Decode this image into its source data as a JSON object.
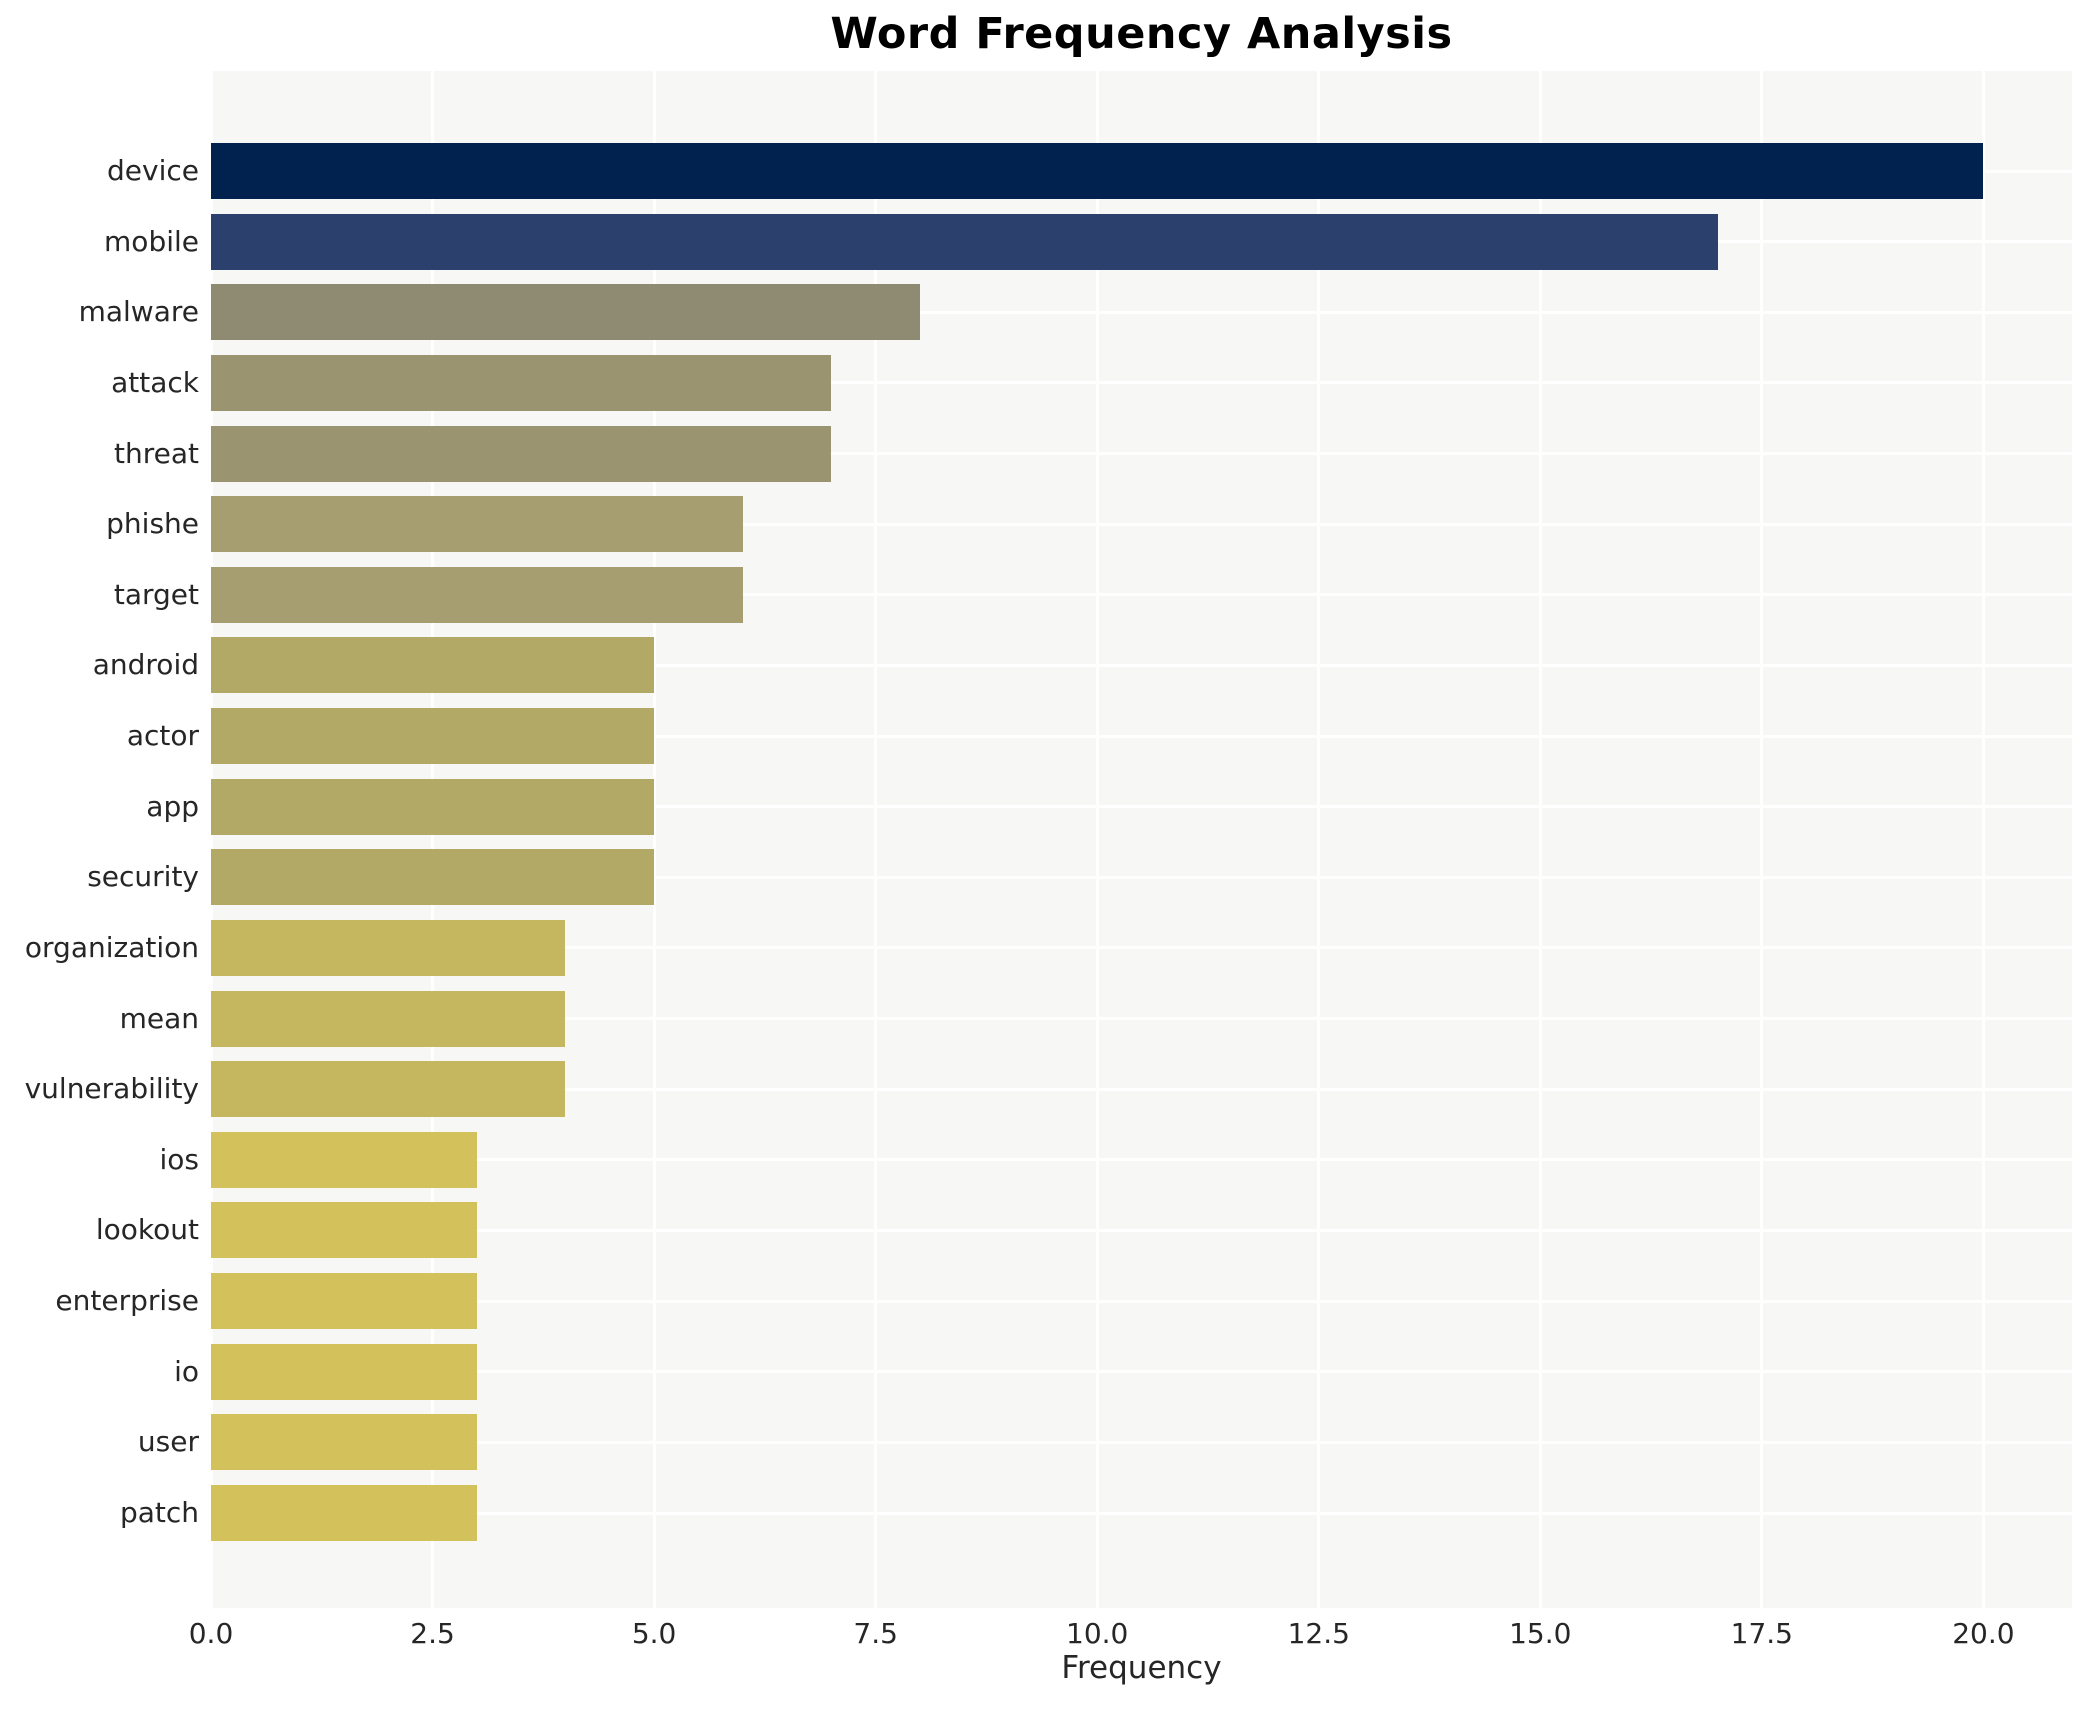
{
  "chart_data": {
    "type": "bar",
    "orientation": "horizontal",
    "title": "Word Frequency Analysis",
    "xlabel": "Frequency",
    "ylabel": "",
    "categories": [
      "device",
      "mobile",
      "malware",
      "attack",
      "threat",
      "phishe",
      "target",
      "android",
      "actor",
      "app",
      "security",
      "organization",
      "mean",
      "vulnerability",
      "ios",
      "lookout",
      "enterprise",
      "io",
      "user",
      "patch"
    ],
    "values": [
      20,
      17,
      8,
      7,
      7,
      6,
      6,
      5,
      5,
      5,
      5,
      4,
      4,
      4,
      3,
      3,
      3,
      3,
      3,
      3
    ],
    "bar_colors": [
      "#01224e",
      "#2b406c",
      "#8f8a72",
      "#9b9471",
      "#9b9471",
      "#a69d70",
      "#a69d70",
      "#b3a967",
      "#b3a967",
      "#b3a967",
      "#b3a967",
      "#c5b75f",
      "#c5b75f",
      "#c5b75f",
      "#d3c15c",
      "#d3c15c",
      "#d3c15c",
      "#d3c15c",
      "#d3c15c",
      "#d3c15c"
    ],
    "xlim": [
      0,
      21
    ],
    "xticks": [
      0.0,
      2.5,
      5.0,
      7.5,
      10.0,
      12.5,
      15.0,
      17.5,
      20.0
    ],
    "xtick_labels": [
      "0.0",
      "2.5",
      "5.0",
      "7.5",
      "10.0",
      "12.5",
      "15.0",
      "17.5",
      "20.0"
    ],
    "grid": true,
    "legend": "none",
    "plot_bg": "#f7f7f6",
    "grid_color": "#ffffff",
    "text_color": "#262626",
    "title_color": "#000000"
  }
}
